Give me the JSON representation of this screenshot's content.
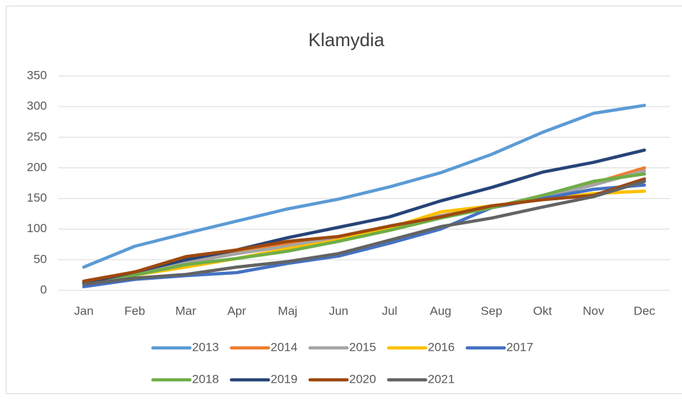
{
  "chart_data": {
    "type": "line",
    "title": "Klamydia",
    "categories": [
      "Jan",
      "Feb",
      "Mar",
      "Apr",
      "Maj",
      "Jun",
      "Jul",
      "Aug",
      "Sep",
      "Okt",
      "Nov",
      "Dec"
    ],
    "series": [
      {
        "name": "2013",
        "color": "#5b9bd5",
        "values": [
          38,
          72,
          93,
          113,
          133,
          149,
          169,
          192,
          222,
          258,
          289,
          302
        ]
      },
      {
        "name": "2014",
        "color": "#ed7d31",
        "values": [
          15,
          30,
          50,
          65,
          75,
          85,
          100,
          120,
          135,
          155,
          175,
          200
        ]
      },
      {
        "name": "2015",
        "color": "#a5a5a5",
        "values": [
          14,
          28,
          45,
          60,
          72,
          88,
          100,
          122,
          135,
          152,
          172,
          195
        ]
      },
      {
        "name": "2016",
        "color": "#ffc000",
        "values": [
          12,
          25,
          38,
          52,
          68,
          82,
          102,
          128,
          138,
          148,
          158,
          162
        ]
      },
      {
        "name": "2017",
        "color": "#4472c4",
        "values": [
          6,
          18,
          24,
          29,
          44,
          56,
          77,
          100,
          135,
          150,
          165,
          172
        ]
      },
      {
        "name": "2018",
        "color": "#70ad47",
        "values": [
          12,
          25,
          42,
          52,
          64,
          80,
          98,
          118,
          135,
          155,
          178,
          190
        ]
      },
      {
        "name": "2019",
        "color": "#264478",
        "values": [
          12,
          30,
          50,
          66,
          86,
          103,
          120,
          146,
          168,
          193,
          209,
          229
        ]
      },
      {
        "name": "2020",
        "color": "#9e480e",
        "values": [
          15,
          30,
          55,
          66,
          80,
          88,
          105,
          120,
          138,
          148,
          155,
          182
        ]
      },
      {
        "name": "2021",
        "color": "#636363",
        "values": [
          10,
          20,
          26,
          38,
          47,
          60,
          82,
          104,
          118,
          136,
          153,
          178
        ]
      }
    ],
    "ylim": [
      0,
      350
    ],
    "yticks": [
      0,
      50,
      100,
      150,
      200,
      250,
      300,
      350
    ],
    "grid": true,
    "legend": "bottom"
  }
}
